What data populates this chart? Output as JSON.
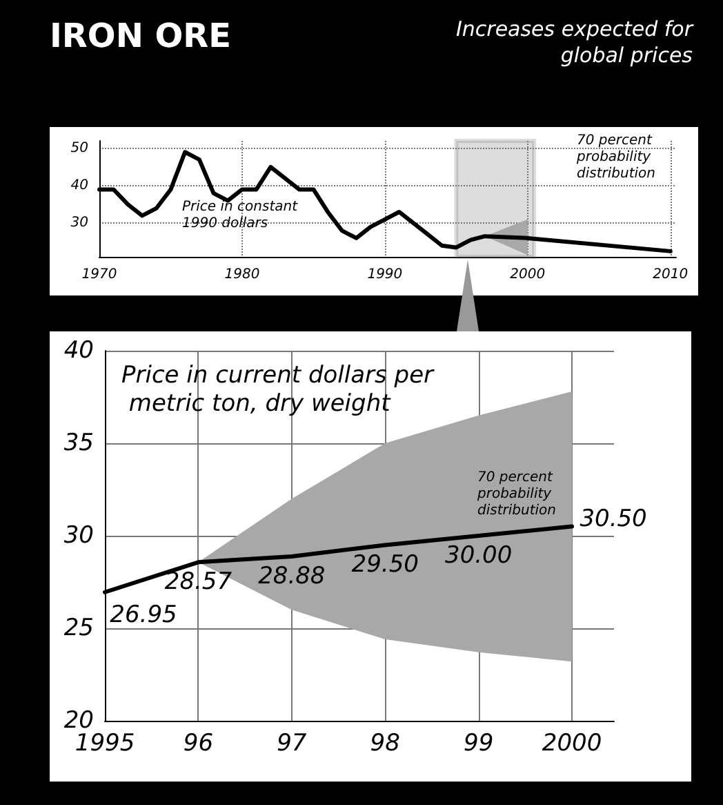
{
  "chart_data": [
    {
      "type": "line",
      "title": "IRON ORE",
      "subtitle": "Increases expected for global prices",
      "xlim": [
        1970,
        2010.4
      ],
      "xticks": [
        1970,
        1980,
        1990,
        2000,
        2010
      ],
      "ylim": [
        21,
        52
      ],
      "yticks": [
        30,
        40,
        50
      ],
      "grid": true,
      "marker": "none",
      "series": [
        {
          "color": "#000000",
          "x": [
            1970,
            1971,
            1972,
            1973,
            1974,
            1975,
            1976,
            1977,
            1978,
            1979,
            1980,
            1981,
            1982,
            1983,
            1984,
            1985,
            1986,
            1987,
            1988,
            1989,
            1990,
            1991,
            1992,
            1993,
            1994,
            1995,
            1996,
            1997,
            2000,
            2010
          ],
          "values": [
            39,
            39,
            35,
            32,
            34,
            39,
            49,
            47,
            38,
            36,
            39,
            39,
            45,
            42,
            39,
            39,
            33,
            28,
            26,
            29,
            31,
            33,
            30,
            27,
            24,
            23.5,
            25.5,
            26.5,
            26,
            22.5
          ],
          "lower": [
            null,
            null,
            null,
            null,
            null,
            null,
            null,
            null,
            null,
            null,
            null,
            null,
            null,
            null,
            null,
            null,
            null,
            null,
            null,
            null,
            null,
            null,
            null,
            null,
            null,
            null,
            null,
            26.5,
            21.5,
            null
          ],
          "upper": [
            null,
            null,
            null,
            null,
            null,
            null,
            null,
            null,
            null,
            null,
            null,
            null,
            null,
            null,
            null,
            null,
            null,
            null,
            null,
            null,
            null,
            null,
            null,
            null,
            null,
            null,
            null,
            26.5,
            31,
            null
          ]
        }
      ],
      "bands": [
        {
          "axis": "x",
          "from": 1995,
          "to": 2000.45,
          "color": "#777777"
        }
      ],
      "annotations": [
        "Price in constant 1990 dollars",
        "70 percent probability distribution"
      ]
    },
    {
      "type": "line",
      "xlim": [
        1995,
        2000.45
      ],
      "xticks": [
        1995,
        {
          "value": 1996,
          "label": "96"
        },
        {
          "value": 1997,
          "label": "97"
        },
        {
          "value": 1998,
          "label": "98"
        },
        {
          "value": 1999,
          "label": "99"
        },
        2000
      ],
      "ylim": [
        20,
        40
      ],
      "yticks": [
        20,
        25,
        30,
        35,
        40
      ],
      "grid": true,
      "marker": "none",
      "series": [
        {
          "color": "#000000",
          "x": [
            1995,
            1996,
            1997,
            1998,
            1999,
            2000
          ],
          "values": [
            26.95,
            28.57,
            28.88,
            29.5,
            30,
            30.5
          ],
          "value_labels": [
            "26.95",
            "28.57",
            "28.88",
            "29.50",
            "30.00",
            "30.50"
          ],
          "lower": [
            null,
            28.57,
            26,
            24.4,
            23.7,
            23.2
          ],
          "upper": [
            null,
            28.57,
            32,
            35,
            36.5,
            37.8
          ]
        }
      ],
      "annotations": [
        "Price in current dollars per metric ton, dry weight",
        "70 percent probability distribution"
      ]
    }
  ]
}
